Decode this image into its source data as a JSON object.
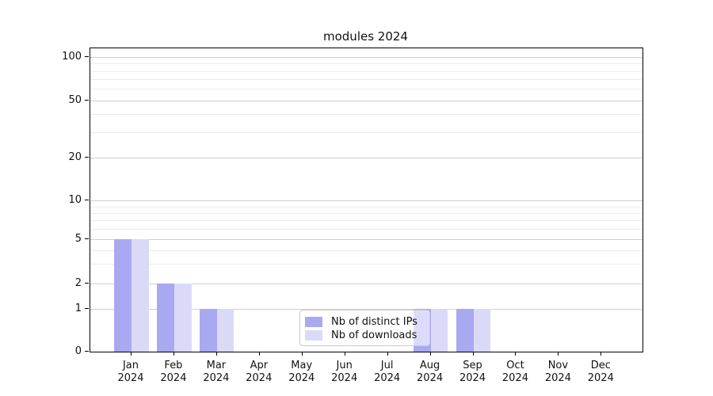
{
  "figure": {
    "title": "modules 2024"
  },
  "chart_data": {
    "type": "bar",
    "title": "modules 2024",
    "categories": [
      "Jan 2024",
      "Feb 2024",
      "Mar 2024",
      "Apr 2024",
      "May 2024",
      "Jun 2024",
      "Jul 2024",
      "Aug 2024",
      "Sep 2024",
      "Oct 2024",
      "Nov 2024",
      "Dec 2024"
    ],
    "series": [
      {
        "name": "Nb of distinct IPs",
        "color": "#a9a9f2",
        "values": [
          5,
          2,
          1,
          0,
          0,
          0,
          0,
          1,
          1,
          0,
          0,
          0
        ]
      },
      {
        "name": "Nb of downloads",
        "color": "#dadaf8",
        "values": [
          5,
          2,
          1,
          0,
          0,
          0,
          0,
          1,
          1,
          0,
          0,
          0
        ]
      }
    ],
    "xlabel": "",
    "ylabel": "",
    "y_ticks": [
      0,
      1,
      2,
      5,
      10,
      20,
      50,
      100
    ],
    "y_minor_ticks": [
      3,
      4,
      6,
      7,
      8,
      9,
      30,
      40,
      60,
      70,
      80,
      90
    ],
    "ylim": [
      0,
      110
    ],
    "scale": "symlog",
    "grid": true,
    "legend_position": "lower center"
  },
  "colors": {
    "bar_series_1": "#a9a9f2",
    "bar_series_2": "#dadaf8",
    "grid_major": "#d0d0d0",
    "grid_minor": "#ececec",
    "axis": "#000000",
    "legend_border": "#cccccc"
  }
}
